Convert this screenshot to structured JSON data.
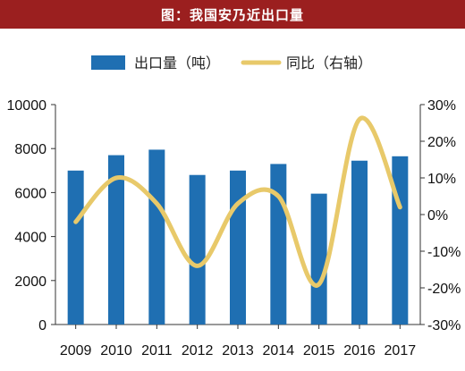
{
  "title": "图：我国安乃近出口量",
  "chart_data": {
    "type": "bar",
    "categories": [
      "2009",
      "2010",
      "2011",
      "2012",
      "2013",
      "2014",
      "2015",
      "2016",
      "2017"
    ],
    "series": [
      {
        "name": "出口量（吨）",
        "type": "bar",
        "axis": "left",
        "color": "#1f6fb2",
        "values": [
          7000,
          7700,
          7950,
          6800,
          7000,
          7300,
          5950,
          7450,
          7650
        ]
      },
      {
        "name": "同比（右轴）",
        "type": "line",
        "axis": "right",
        "color": "#e8c96a",
        "values": [
          -2,
          10,
          3,
          -14,
          3,
          5,
          -19,
          26,
          2
        ]
      }
    ],
    "y_left": {
      "min": 0,
      "max": 10000,
      "ticks": [
        "0",
        "2000",
        "4000",
        "6000",
        "8000",
        "10000"
      ]
    },
    "y_right": {
      "min": -30,
      "max": 30,
      "ticks": [
        "-30%",
        "-20%",
        "-10%",
        "0%",
        "10%",
        "20%",
        "30%"
      ]
    },
    "grid": false,
    "legend": "top"
  }
}
